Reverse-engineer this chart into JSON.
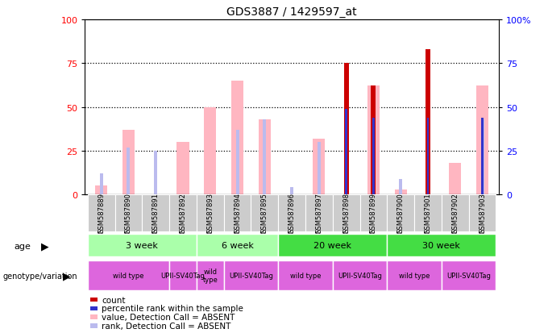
{
  "title": "GDS3887 / 1429597_at",
  "samples": [
    "GSM587889",
    "GSM587890",
    "GSM587891",
    "GSM587892",
    "GSM587893",
    "GSM587894",
    "GSM587895",
    "GSM587896",
    "GSM587897",
    "GSM587898",
    "GSM587899",
    "GSM587900",
    "GSM587901",
    "GSM587902",
    "GSM587903"
  ],
  "value_absent": [
    5,
    37,
    0,
    30,
    50,
    65,
    43,
    0,
    32,
    0,
    62,
    3,
    0,
    18,
    62
  ],
  "rank_absent": [
    12,
    27,
    25,
    0,
    0,
    37,
    43,
    4,
    30,
    0,
    0,
    9,
    0,
    0,
    43
  ],
  "count_values": [
    0,
    0,
    0,
    0,
    0,
    0,
    0,
    0,
    0,
    75,
    62,
    0,
    83,
    0,
    0
  ],
  "percentile_values": [
    0,
    0,
    0,
    0,
    0,
    0,
    0,
    0,
    0,
    49,
    44,
    0,
    44,
    0,
    44
  ],
  "color_count": "#CC0000",
  "color_rank": "#3333CC",
  "color_value_absent": "#FFB6C1",
  "color_rank_absent": "#BBBBEE",
  "age_boundaries": [
    {
      "label": "3 week",
      "start": 0,
      "end": 4,
      "color": "#AAFFAA"
    },
    {
      "label": "6 week",
      "start": 4,
      "end": 7,
      "color": "#AAFFAA"
    },
    {
      "label": "20 week",
      "start": 7,
      "end": 11,
      "color": "#44DD44"
    },
    {
      "label": "30 week",
      "start": 11,
      "end": 15,
      "color": "#44DD44"
    }
  ],
  "geno_boundaries": [
    {
      "label": "wild type",
      "start": 0,
      "end": 3,
      "color": "#DD66DD"
    },
    {
      "label": "UPII-SV40Tag",
      "start": 3,
      "end": 4,
      "color": "#DD66DD"
    },
    {
      "label": "wild\ntype",
      "start": 4,
      "end": 5,
      "color": "#DD66DD"
    },
    {
      "label": "UPII-SV40Tag",
      "start": 5,
      "end": 7,
      "color": "#DD66DD"
    },
    {
      "label": "wild type",
      "start": 7,
      "end": 9,
      "color": "#DD66DD"
    },
    {
      "label": "UPII-SV40Tag",
      "start": 9,
      "end": 11,
      "color": "#DD66DD"
    },
    {
      "label": "wild type",
      "start": 11,
      "end": 13,
      "color": "#DD66DD"
    },
    {
      "label": "UPII-SV40Tag",
      "start": 13,
      "end": 15,
      "color": "#DD66DD"
    }
  ],
  "legend_items": [
    {
      "label": "count",
      "color": "#CC0000"
    },
    {
      "label": "percentile rank within the sample",
      "color": "#3333CC"
    },
    {
      "label": "value, Detection Call = ABSENT",
      "color": "#FFB6C1"
    },
    {
      "label": "rank, Detection Call = ABSENT",
      "color": "#BBBBEE"
    }
  ],
  "grid_ticks": [
    25,
    50,
    75
  ]
}
